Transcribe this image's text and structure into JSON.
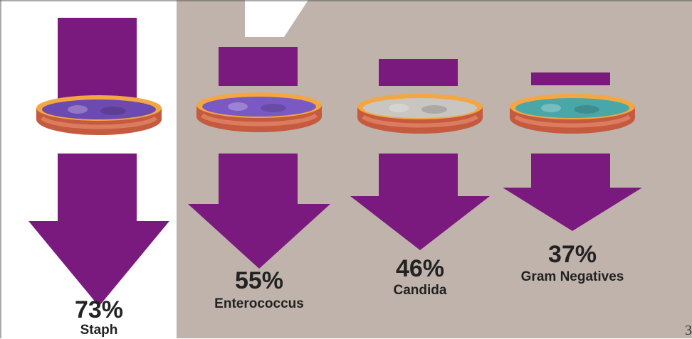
{
  "colors": {
    "background": "#ffffff",
    "panel": "#bfb3ac",
    "arrow": "#7a1a7e",
    "dish_rim": "#f2a742",
    "dish_wall": "#c55a3f"
  },
  "items": [
    {
      "percent": "73%",
      "value": 73,
      "label": "Staph",
      "dish_icon": "staph-culture-dish-icon",
      "culture_color": "#6d4ab0"
    },
    {
      "percent": "55%",
      "value": 55,
      "label": "Enterococcus",
      "dish_icon": "enterococcus-culture-dish-icon",
      "culture_color": "#7b59c4"
    },
    {
      "percent": "46%",
      "value": 46,
      "label": "Candida",
      "dish_icon": "candida-culture-dish-icon",
      "culture_color": "#c9c6c2"
    },
    {
      "percent": "37%",
      "value": 37,
      "label": "Gram Negatives",
      "dish_icon": "gram-negatives-culture-dish-icon",
      "culture_color": "#4aa7a8"
    }
  ],
  "page_number": "3"
}
